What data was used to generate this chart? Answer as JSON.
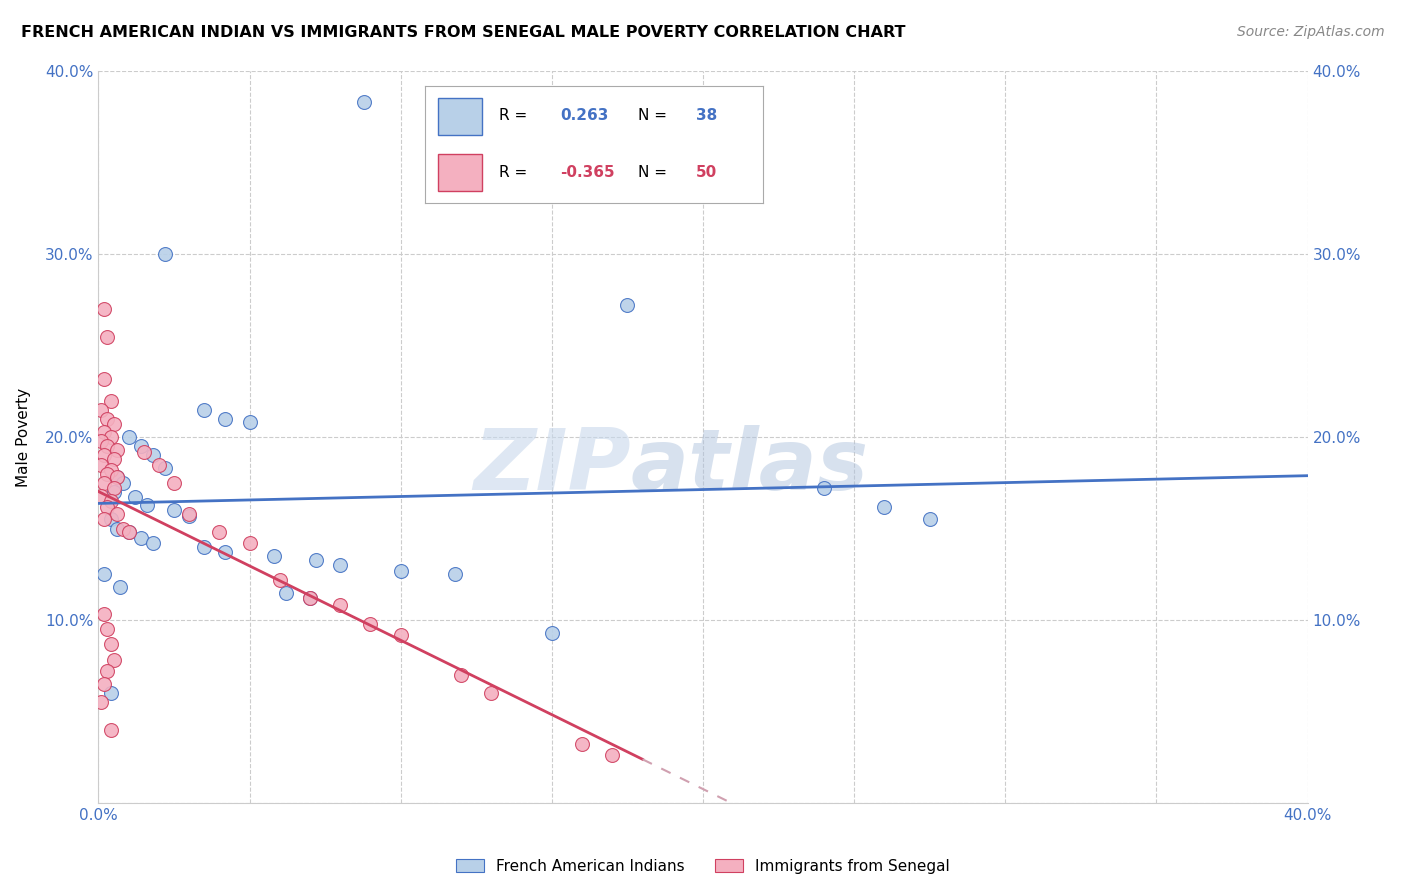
{
  "title": "FRENCH AMERICAN INDIAN VS IMMIGRANTS FROM SENEGAL MALE POVERTY CORRELATION CHART",
  "source": "Source: ZipAtlas.com",
  "ylabel": "Male Poverty",
  "xlim": [
    0,
    0.4
  ],
  "ylim": [
    0,
    0.4
  ],
  "legend_blue_r": "0.263",
  "legend_blue_n": "38",
  "legend_pink_r": "-0.365",
  "legend_pink_n": "50",
  "legend_label_blue": "French American Indians",
  "legend_label_pink": "Immigrants from Senegal",
  "watermark_zip": "ZIP",
  "watermark_atlas": "atlas",
  "blue_color": "#b8d0e8",
  "pink_color": "#f4b0c0",
  "blue_line_color": "#4472c4",
  "pink_line_color": "#d04060",
  "pink_dash_color": "#d0a0b0",
  "blue_scatter": [
    [
      0.088,
      0.383
    ],
    [
      0.175,
      0.272
    ],
    [
      0.022,
      0.3
    ],
    [
      0.035,
      0.215
    ],
    [
      0.042,
      0.21
    ],
    [
      0.05,
      0.208
    ],
    [
      0.01,
      0.2
    ],
    [
      0.014,
      0.195
    ],
    [
      0.018,
      0.19
    ],
    [
      0.022,
      0.183
    ],
    [
      0.006,
      0.178
    ],
    [
      0.008,
      0.175
    ],
    [
      0.005,
      0.17
    ],
    [
      0.012,
      0.167
    ],
    [
      0.016,
      0.163
    ],
    [
      0.025,
      0.16
    ],
    [
      0.03,
      0.157
    ],
    [
      0.004,
      0.155
    ],
    [
      0.006,
      0.15
    ],
    [
      0.01,
      0.148
    ],
    [
      0.014,
      0.145
    ],
    [
      0.018,
      0.142
    ],
    [
      0.035,
      0.14
    ],
    [
      0.042,
      0.137
    ],
    [
      0.058,
      0.135
    ],
    [
      0.072,
      0.133
    ],
    [
      0.08,
      0.13
    ],
    [
      0.1,
      0.127
    ],
    [
      0.118,
      0.125
    ],
    [
      0.24,
      0.172
    ],
    [
      0.26,
      0.162
    ],
    [
      0.275,
      0.155
    ],
    [
      0.002,
      0.125
    ],
    [
      0.007,
      0.118
    ],
    [
      0.062,
      0.115
    ],
    [
      0.07,
      0.112
    ],
    [
      0.15,
      0.093
    ],
    [
      0.004,
      0.06
    ]
  ],
  "pink_scatter": [
    [
      0.002,
      0.27
    ],
    [
      0.003,
      0.255
    ],
    [
      0.002,
      0.232
    ],
    [
      0.004,
      0.22
    ],
    [
      0.001,
      0.215
    ],
    [
      0.003,
      0.21
    ],
    [
      0.005,
      0.207
    ],
    [
      0.002,
      0.203
    ],
    [
      0.004,
      0.2
    ],
    [
      0.001,
      0.198
    ],
    [
      0.003,
      0.195
    ],
    [
      0.006,
      0.193
    ],
    [
      0.002,
      0.19
    ],
    [
      0.005,
      0.188
    ],
    [
      0.001,
      0.185
    ],
    [
      0.004,
      0.182
    ],
    [
      0.003,
      0.18
    ],
    [
      0.006,
      0.178
    ],
    [
      0.002,
      0.175
    ],
    [
      0.005,
      0.172
    ],
    [
      0.001,
      0.168
    ],
    [
      0.004,
      0.165
    ],
    [
      0.003,
      0.162
    ],
    [
      0.006,
      0.158
    ],
    [
      0.002,
      0.155
    ],
    [
      0.008,
      0.15
    ],
    [
      0.01,
      0.148
    ],
    [
      0.015,
      0.192
    ],
    [
      0.02,
      0.185
    ],
    [
      0.025,
      0.175
    ],
    [
      0.03,
      0.158
    ],
    [
      0.04,
      0.148
    ],
    [
      0.05,
      0.142
    ],
    [
      0.06,
      0.122
    ],
    [
      0.07,
      0.112
    ],
    [
      0.08,
      0.108
    ],
    [
      0.09,
      0.098
    ],
    [
      0.1,
      0.092
    ],
    [
      0.12,
      0.07
    ],
    [
      0.13,
      0.06
    ],
    [
      0.16,
      0.032
    ],
    [
      0.17,
      0.026
    ],
    [
      0.002,
      0.103
    ],
    [
      0.003,
      0.095
    ],
    [
      0.004,
      0.087
    ],
    [
      0.005,
      0.078
    ],
    [
      0.003,
      0.072
    ],
    [
      0.002,
      0.065
    ],
    [
      0.001,
      0.055
    ],
    [
      0.004,
      0.04
    ]
  ]
}
